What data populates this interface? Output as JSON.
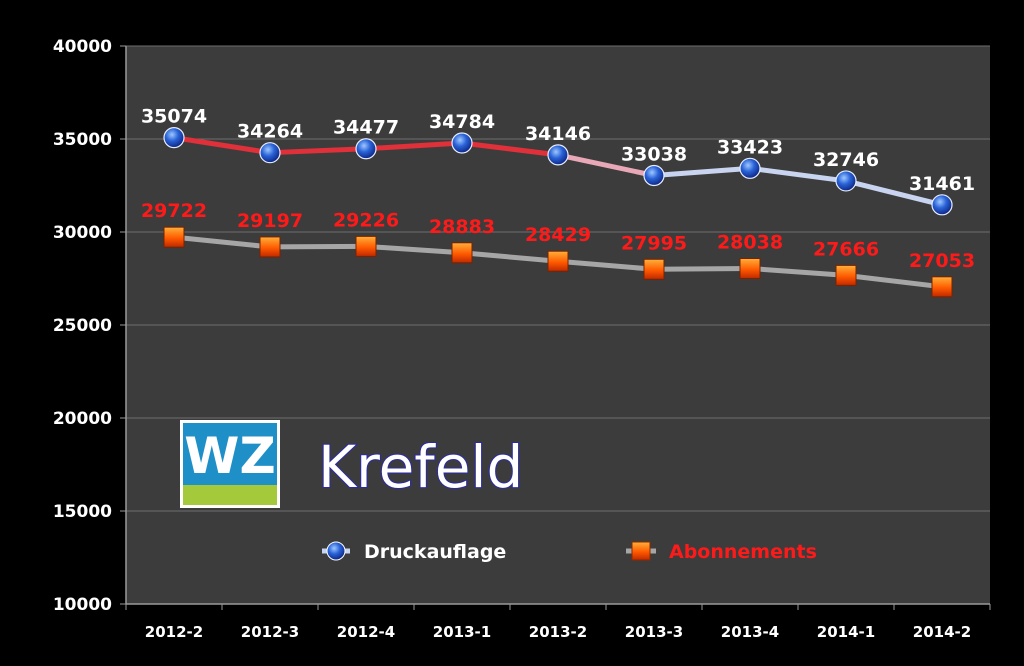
{
  "chart_data": {
    "type": "line",
    "title": "",
    "xlabel": "",
    "ylabel": "",
    "categories": [
      "2012-2",
      "2012-3",
      "2012-4",
      "2013-1",
      "2013-2",
      "2013-3",
      "2013-4",
      "2014-1",
      "2014-2"
    ],
    "ylim": [
      10000,
      40000
    ],
    "yticks": [
      10000,
      15000,
      20000,
      25000,
      30000,
      35000,
      40000
    ],
    "grid": true,
    "legend_position": "bottom-right",
    "series": [
      {
        "name": "Druckauflage",
        "values": [
          35074,
          34264,
          34477,
          34784,
          34146,
          33038,
          33423,
          32746,
          31461
        ],
        "line_colors": [
          "#e0303a",
          "#e0303a",
          "#e0303a",
          "#e0303a",
          "#e8a8b8",
          "#c8d4f0",
          "#c8d4f0",
          "#c8d4f0"
        ],
        "marker": "blue-circle",
        "label_color": "#ffffff"
      },
      {
        "name": "Abonnements",
        "values": [
          29722,
          29197,
          29226,
          28883,
          28429,
          27995,
          28038,
          27666,
          27053
        ],
        "line_color": "#a6a6a6",
        "marker": "orange-square",
        "label_color": "#ff1a1a"
      }
    ]
  },
  "legend": {
    "series_a": "Druckauflage",
    "series_b": "Abonnements",
    "series_a_color": "#ffffff",
    "series_b_color": "#ff1a1a"
  },
  "watermark": {
    "logo_text": "WZ",
    "city": "Krefeld"
  },
  "colors": {
    "background": "#000000",
    "plot_area": "#3c3c3c",
    "grid": "#6e6e6e",
    "logo_blue": "#1f8fc8",
    "logo_green": "#a4c93a"
  }
}
